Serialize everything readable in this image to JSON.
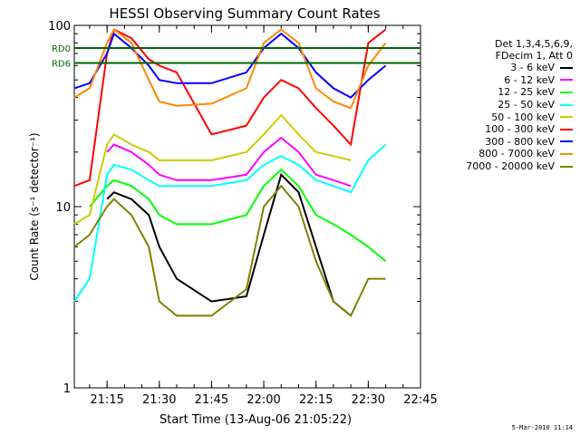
{
  "chart_data": {
    "type": "line",
    "title": "HESSI Observing Summary Count Rates",
    "xlabel": "Start Time (13-Aug-06 21:05:22)",
    "ylabel": "Count Rate (s⁻¹ detector⁻¹)",
    "yscale": "log",
    "ylim": [
      1,
      100
    ],
    "y_ticks": [
      "1",
      "10",
      "100"
    ],
    "xlim_minutes": [
      21.0933,
      22.75
    ],
    "x_ticks": [
      "21:15",
      "21:30",
      "21:45",
      "22:00",
      "22:15",
      "22:30",
      "22:45"
    ],
    "legend_title": [
      "Det 1,3,4,5,6,9,",
      "FDecim 1, Att 0"
    ],
    "legend_placement": "right",
    "grid": false,
    "annotations": [
      {
        "text": "RD0",
        "y": 75
      },
      {
        "text": "RD6",
        "y": 62
      }
    ],
    "series": [
      {
        "name": "3 - 6 keV",
        "color": "#000000",
        "x": [
          "21:05",
          "21:10",
          "21:15",
          "21:17",
          "21:22",
          "21:27",
          "21:30",
          "21:35",
          "21:45",
          "21:55",
          "22:00",
          "22:05",
          "22:10",
          "22:15",
          "22:20",
          "22:25",
          "22:30",
          "22:35"
        ],
        "y": [
          null,
          null,
          11,
          12,
          11,
          9,
          6,
          4,
          3,
          3.2,
          7,
          15,
          12,
          6,
          3,
          2.5,
          null,
          null
        ]
      },
      {
        "name": "6 - 12 keV",
        "color": "#ff00ff",
        "x": [
          "21:05",
          "21:10",
          "21:15",
          "21:17",
          "21:22",
          "21:27",
          "21:30",
          "21:35",
          "21:45",
          "21:55",
          "22:00",
          "22:05",
          "22:10",
          "22:15",
          "22:20",
          "22:25",
          "22:30",
          "22:35"
        ],
        "y": [
          null,
          null,
          20,
          22,
          20,
          17,
          15,
          14,
          14,
          15,
          20,
          24,
          20,
          15,
          14,
          13,
          null,
          null
        ]
      },
      {
        "name": "12 - 25 keV",
        "color": "#00ff00",
        "x": [
          "21:05",
          "21:10",
          "21:15",
          "21:17",
          "21:22",
          "21:27",
          "21:30",
          "21:35",
          "21:45",
          "21:55",
          "22:00",
          "22:05",
          "22:10",
          "22:15",
          "22:20",
          "22:25",
          "22:30",
          "22:35"
        ],
        "y": [
          null,
          10,
          13,
          14,
          13,
          11,
          9,
          8,
          8,
          9,
          13,
          16,
          13,
          9,
          8,
          7,
          6,
          5
        ]
      },
      {
        "name": "25 - 50 keV",
        "color": "#00ffff",
        "x": [
          "21:05",
          "21:10",
          "21:15",
          "21:17",
          "21:22",
          "21:27",
          "21:30",
          "21:35",
          "21:45",
          "21:55",
          "22:00",
          "22:05",
          "22:10",
          "22:15",
          "22:20",
          "22:25",
          "22:30",
          "22:35"
        ],
        "y": [
          3,
          4,
          15,
          17,
          16,
          14,
          13,
          13,
          13,
          14,
          17,
          19,
          17,
          14,
          13,
          12,
          18,
          22
        ]
      },
      {
        "name": "50 - 100 keV",
        "color": "#cccc00",
        "x": [
          "21:05",
          "21:10",
          "21:15",
          "21:17",
          "21:22",
          "21:27",
          "21:30",
          "21:35",
          "21:45",
          "21:55",
          "22:00",
          "22:05",
          "22:10",
          "22:15",
          "22:20",
          "22:25",
          "22:30",
          "22:35"
        ],
        "y": [
          8,
          9,
          22,
          25,
          22,
          20,
          18,
          18,
          18,
          20,
          25,
          32,
          25,
          20,
          19,
          18,
          null,
          null
        ]
      },
      {
        "name": "100 - 300 keV",
        "color": "#ff0000",
        "x": [
          "21:05",
          "21:10",
          "21:15",
          "21:17",
          "21:22",
          "21:27",
          "21:30",
          "21:35",
          "21:45",
          "21:55",
          "22:00",
          "22:05",
          "22:10",
          "22:15",
          "22:20",
          "22:25",
          "22:30",
          "22:35"
        ],
        "y": [
          13,
          14,
          70,
          95,
          85,
          65,
          60,
          55,
          25,
          28,
          40,
          50,
          45,
          35,
          28,
          22,
          80,
          95
        ]
      },
      {
        "name": "300 - 800 keV",
        "color": "#0000ff",
        "x": [
          "21:05",
          "21:10",
          "21:15",
          "21:17",
          "21:22",
          "21:27",
          "21:30",
          "21:35",
          "21:45",
          "21:55",
          "22:00",
          "22:05",
          "22:10",
          "22:15",
          "22:20",
          "22:25",
          "22:30",
          "22:35"
        ],
        "y": [
          45,
          48,
          70,
          90,
          75,
          60,
          50,
          48,
          48,
          55,
          75,
          90,
          75,
          55,
          45,
          40,
          50,
          60
        ]
      },
      {
        "name": "800 - 7000 keV",
        "color": "#ff8800",
        "x": [
          "21:05",
          "21:10",
          "21:15",
          "21:17",
          "21:22",
          "21:27",
          "21:30",
          "21:35",
          "21:45",
          "21:55",
          "22:00",
          "22:05",
          "22:10",
          "22:15",
          "22:20",
          "22:25",
          "22:30",
          "22:35"
        ],
        "y": [
          40,
          45,
          80,
          95,
          80,
          50,
          38,
          36,
          37,
          45,
          80,
          95,
          80,
          45,
          38,
          35,
          60,
          80
        ]
      },
      {
        "name": "7000 - 20000 keV",
        "color": "#808000",
        "x": [
          "21:05",
          "21:10",
          "21:15",
          "21:17",
          "21:22",
          "21:27",
          "21:30",
          "21:35",
          "21:45",
          "21:55",
          "22:00",
          "22:05",
          "22:10",
          "22:15",
          "22:20",
          "22:25",
          "22:30",
          "22:35"
        ],
        "y": [
          6,
          7,
          10,
          11,
          9,
          6,
          3,
          2.5,
          2.5,
          3.5,
          10,
          13,
          10,
          5,
          3,
          2.5,
          4,
          4
        ]
      }
    ]
  },
  "footer_stamp": "5-Mar-2010 11:14"
}
